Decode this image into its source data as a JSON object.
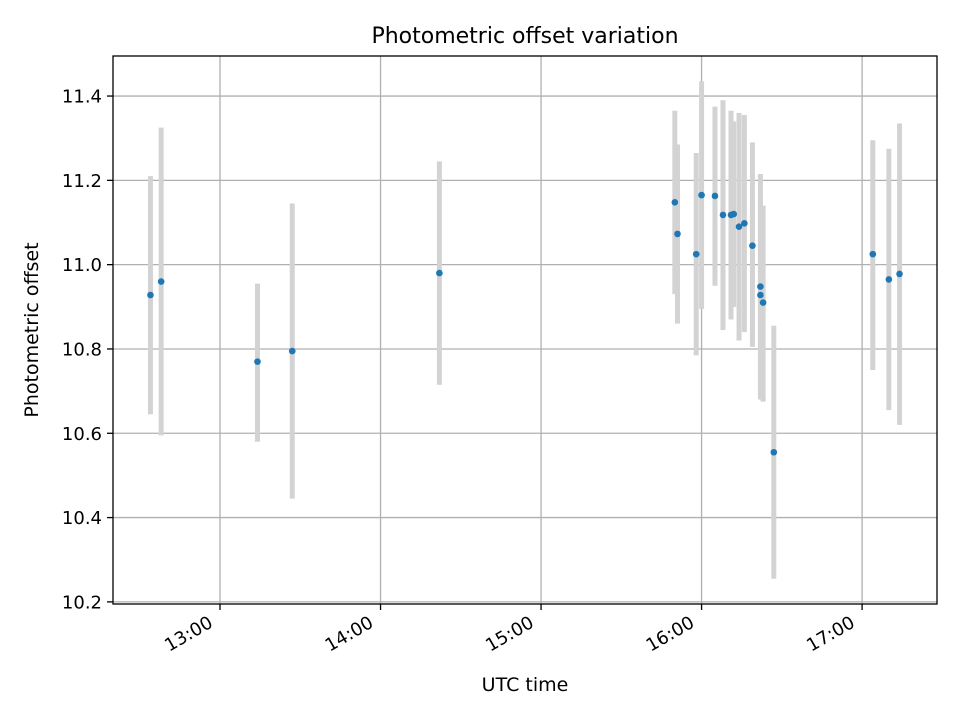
{
  "chart_data": {
    "type": "scatter",
    "title": "Photometric offset variation",
    "xlabel": "UTC time",
    "ylabel": "Photometric offset",
    "xlim": [
      "12:20",
      "17:28"
    ],
    "ylim": [
      10.195,
      11.495
    ],
    "grid": true,
    "x_ticks": [
      "13:00",
      "14:00",
      "15:00",
      "16:00",
      "17:00"
    ],
    "y_ticks": [
      "10.2",
      "10.4",
      "10.6",
      "10.8",
      "11.0",
      "11.2",
      "11.4"
    ],
    "marker_color": "#1f77b4",
    "errorbar_color": "#d3d3d3",
    "points": [
      {
        "t": "12:34",
        "y": 10.928,
        "lo": 10.645,
        "hi": 11.21
      },
      {
        "t": "12:38",
        "y": 10.96,
        "lo": 10.595,
        "hi": 11.325
      },
      {
        "t": "13:14",
        "y": 10.77,
        "lo": 10.58,
        "hi": 10.955
      },
      {
        "t": "13:27",
        "y": 10.795,
        "lo": 10.445,
        "hi": 11.145
      },
      {
        "t": "14:22",
        "y": 10.98,
        "lo": 10.715,
        "hi": 11.245
      },
      {
        "t": "15:50",
        "y": 11.148,
        "lo": 10.93,
        "hi": 11.365
      },
      {
        "t": "15:51",
        "y": 11.073,
        "lo": 10.86,
        "hi": 11.285
      },
      {
        "t": "15:58",
        "y": 11.025,
        "lo": 10.785,
        "hi": 11.265
      },
      {
        "t": "16:00",
        "y": 11.165,
        "lo": 10.895,
        "hi": 11.435
      },
      {
        "t": "16:05",
        "y": 11.163,
        "lo": 10.95,
        "hi": 11.375
      },
      {
        "t": "16:08",
        "y": 11.118,
        "lo": 10.845,
        "hi": 11.39
      },
      {
        "t": "16:11",
        "y": 11.118,
        "lo": 10.87,
        "hi": 11.365
      },
      {
        "t": "16:12",
        "y": 11.12,
        "lo": 10.9,
        "hi": 11.34
      },
      {
        "t": "16:14",
        "y": 11.09,
        "lo": 10.82,
        "hi": 11.36
      },
      {
        "t": "16:16",
        "y": 11.098,
        "lo": 10.84,
        "hi": 11.355
      },
      {
        "t": "16:19",
        "y": 11.045,
        "lo": 10.805,
        "hi": 11.29
      },
      {
        "t": "16:22",
        "y": 10.948,
        "lo": 10.68,
        "hi": 11.215
      },
      {
        "t": "16:22",
        "y": 10.928,
        "lo": 10.69,
        "hi": 11.165
      },
      {
        "t": "16:23",
        "y": 10.91,
        "lo": 10.675,
        "hi": 11.14
      },
      {
        "t": "16:27",
        "y": 10.555,
        "lo": 10.255,
        "hi": 10.855
      },
      {
        "t": "17:04",
        "y": 11.025,
        "lo": 10.75,
        "hi": 11.295
      },
      {
        "t": "17:10",
        "y": 10.965,
        "lo": 10.655,
        "hi": 11.275
      },
      {
        "t": "17:14",
        "y": 10.978,
        "lo": 10.62,
        "hi": 11.335
      }
    ]
  }
}
